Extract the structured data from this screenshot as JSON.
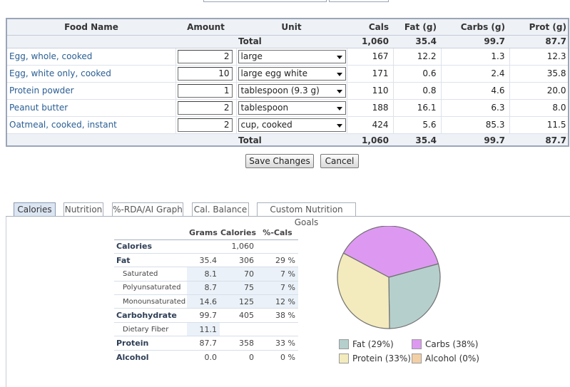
{
  "food_table": {
    "headers": {
      "name": "Food Name",
      "amount": "Amount",
      "unit": "Unit",
      "cals": "Cals",
      "fat": "Fat (g)",
      "carbs": "Carbs (g)",
      "prot": "Prot (g)"
    },
    "total_label": "Total",
    "totals": {
      "cals": "1,060",
      "fat": "35.4",
      "carbs": "99.7",
      "prot": "87.7"
    },
    "rows": [
      {
        "name": "Egg, whole, cooked",
        "amount": "2",
        "unit": "large",
        "cals": "167",
        "fat": "12.2",
        "carbs": "1.3",
        "prot": "12.3"
      },
      {
        "name": "Egg, white only, cooked",
        "amount": "10",
        "unit": "large egg white",
        "cals": "171",
        "fat": "0.6",
        "carbs": "2.4",
        "prot": "35.8"
      },
      {
        "name": "Protein powder",
        "amount": "1",
        "unit": "tablespoon (9.3 g)",
        "cals": "110",
        "fat": "0.8",
        "carbs": "4.6",
        "prot": "20.0"
      },
      {
        "name": "Peanut butter",
        "amount": "2",
        "unit": "tablespoon",
        "cals": "188",
        "fat": "16.1",
        "carbs": "6.3",
        "prot": "8.0"
      },
      {
        "name": "Oatmeal, cooked, instant",
        "amount": "2",
        "unit": "cup, cooked",
        "cals": "424",
        "fat": "5.6",
        "carbs": "85.3",
        "prot": "11.5"
      }
    ]
  },
  "buttons": {
    "save": "Save Changes",
    "cancel": "Cancel"
  },
  "tabs": [
    {
      "label": "Calories",
      "active": true
    },
    {
      "label": "Nutrition",
      "active": false
    },
    {
      "label": "%-RDA/AI Graph",
      "active": false
    },
    {
      "label": "Cal. Balance",
      "active": false
    },
    {
      "label": "Custom Nutrition Goals",
      "active": false
    }
  ],
  "nutrition": {
    "headers": {
      "grams": "Grams",
      "calories": "Calories",
      "pct": "%-Cals"
    },
    "rows": [
      {
        "label": "Calories",
        "grams": "",
        "cals": "1,060",
        "pct": ""
      },
      {
        "label": "Fat",
        "grams": "35.4",
        "cals": "306",
        "pct": "29 %"
      },
      {
        "label": "Saturated",
        "grams": "8.1",
        "cals": "70",
        "pct": "7 %"
      },
      {
        "label": "Polyunsaturated",
        "grams": "8.7",
        "cals": "75",
        "pct": "7 %"
      },
      {
        "label": "Monounsaturated",
        "grams": "14.6",
        "cals": "125",
        "pct": "12 %"
      },
      {
        "label": "Carbohydrate",
        "grams": "99.7",
        "cals": "405",
        "pct": "38 %"
      },
      {
        "label": "Dietary Fiber",
        "grams": "11.1",
        "cals": "",
        "pct": ""
      },
      {
        "label": "Protein",
        "grams": "87.7",
        "cals": "358",
        "pct": "33 %"
      },
      {
        "label": "Alcohol",
        "grams": "0.0",
        "cals": "0",
        "pct": "0 %"
      }
    ]
  },
  "pie": {
    "slices": [
      {
        "name": "Fat",
        "pct": 29,
        "color": "#b5cfcc"
      },
      {
        "name": "Carbs",
        "pct": 38,
        "color": "#dd99f2"
      },
      {
        "name": "Protein",
        "pct": 33,
        "color": "#f3ebbd"
      },
      {
        "name": "Alcohol",
        "pct": 0,
        "color": "#f3cfa6"
      }
    ]
  },
  "legend": {
    "fat": "Fat  (29%)",
    "carbs": "Carbs  (38%)",
    "protein": "Protein  (33%)",
    "alcohol": "Alcohol  (0%)"
  }
}
